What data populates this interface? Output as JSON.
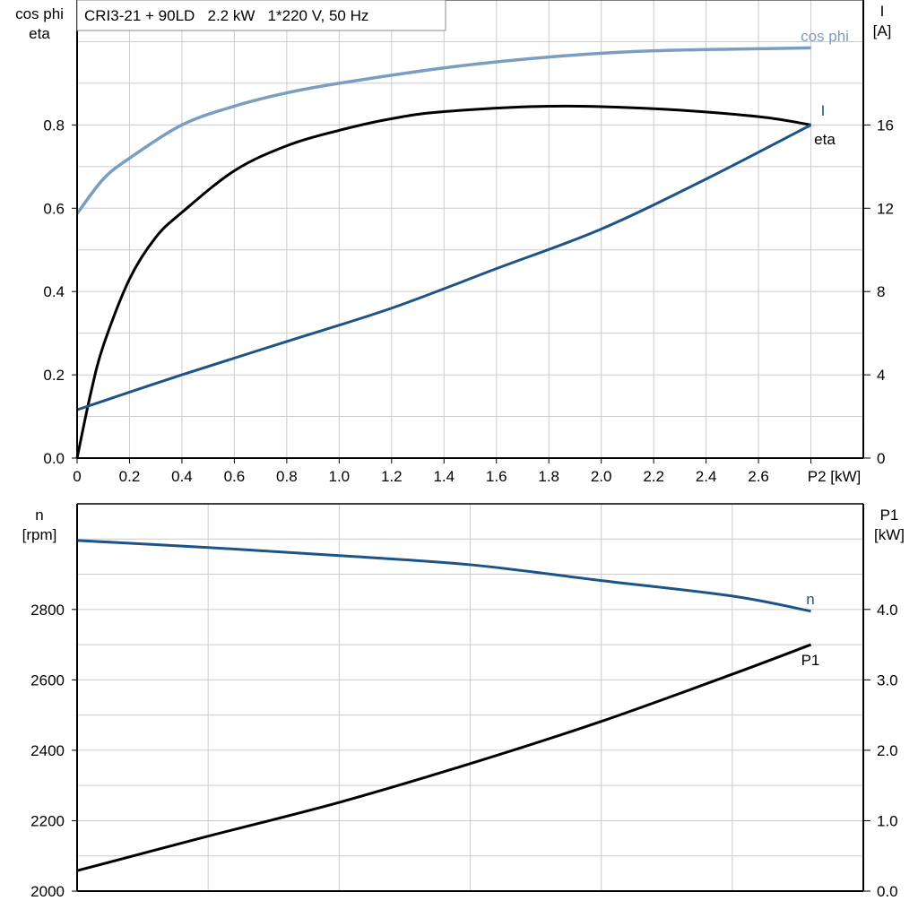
{
  "title": "CRI3-21 + 90LD   2.2 kW   1*220 V, 50 Hz",
  "colors": {
    "cos_phi": "#7b9ec0",
    "current": "#1c5488",
    "eta": "#000000",
    "n": "#1c5488",
    "p1": "#000000",
    "grid": "#cccccc"
  },
  "chart_data": [
    {
      "type": "line",
      "xlabel": "P2 [kW]",
      "ylabel_left": [
        "cos phi",
        "eta"
      ],
      "ylabel_right": [
        "I",
        "[A]"
      ],
      "xlim": [
        0,
        3.0
      ],
      "ylim_left": [
        0,
        1.1
      ],
      "ylim_right": [
        0,
        22
      ],
      "x_ticks": [
        "0",
        "0.2",
        "0.4",
        "0.6",
        "0.8",
        "1.0",
        "1.2",
        "1.4",
        "1.6",
        "1.8",
        "2.0",
        "2.2",
        "2.4",
        "2.6",
        "P2 [kW]"
      ],
      "y_ticks_left": [
        "0.0",
        "0.2",
        "0.4",
        "0.6",
        "0.8"
      ],
      "y_ticks_right": [
        "0",
        "4",
        "8",
        "12",
        "16"
      ],
      "grid": true,
      "series": [
        {
          "name": "cos phi",
          "axis": "left",
          "x": [
            0,
            0.1,
            0.2,
            0.4,
            0.6,
            0.8,
            1.0,
            1.4,
            1.8,
            2.2,
            2.8
          ],
          "y": [
            0.587,
            0.67,
            0.72,
            0.8,
            0.845,
            0.877,
            0.9,
            0.937,
            0.963,
            0.978,
            0.985
          ]
        },
        {
          "name": "eta",
          "axis": "left",
          "x": [
            0,
            0.05,
            0.1,
            0.2,
            0.3,
            0.4,
            0.6,
            0.8,
            1.0,
            1.2,
            1.4,
            1.8,
            2.2,
            2.6,
            2.8
          ],
          "y": [
            0,
            0.15,
            0.27,
            0.43,
            0.53,
            0.59,
            0.69,
            0.75,
            0.787,
            0.815,
            0.832,
            0.845,
            0.839,
            0.82,
            0.8
          ]
        },
        {
          "name": "I",
          "axis": "right",
          "x": [
            0,
            0.4,
            0.8,
            1.2,
            1.6,
            2.0,
            2.4,
            2.8
          ],
          "y": [
            2.32,
            4.0,
            5.6,
            7.2,
            9.1,
            11.0,
            13.4,
            16.0
          ]
        }
      ]
    },
    {
      "type": "line",
      "xlim": [
        0,
        3.0
      ],
      "ylabel_left": [
        "n",
        "[rpm]"
      ],
      "ylabel_right": [
        "P1",
        "[kW]"
      ],
      "ylim_left": [
        2000,
        3100
      ],
      "ylim_right": [
        0,
        5.5
      ],
      "y_ticks_left": [
        "2000",
        "2200",
        "2400",
        "2600",
        "2800"
      ],
      "y_ticks_right": [
        "0.0",
        "1.0",
        "2.0",
        "3.0",
        "4.0"
      ],
      "grid": true,
      "series": [
        {
          "name": "n",
          "axis": "left",
          "x": [
            0,
            0.5,
            1.0,
            1.5,
            2.0,
            2.5,
            2.8
          ],
          "y": [
            2996,
            2976,
            2953,
            2927,
            2882,
            2838,
            2795
          ]
        },
        {
          "name": "P1",
          "axis": "right",
          "x": [
            0,
            0.5,
            1.0,
            1.5,
            2.0,
            2.5,
            2.8
          ],
          "y": [
            0.29,
            0.78,
            1.26,
            1.81,
            2.41,
            3.08,
            3.5
          ]
        }
      ]
    }
  ]
}
